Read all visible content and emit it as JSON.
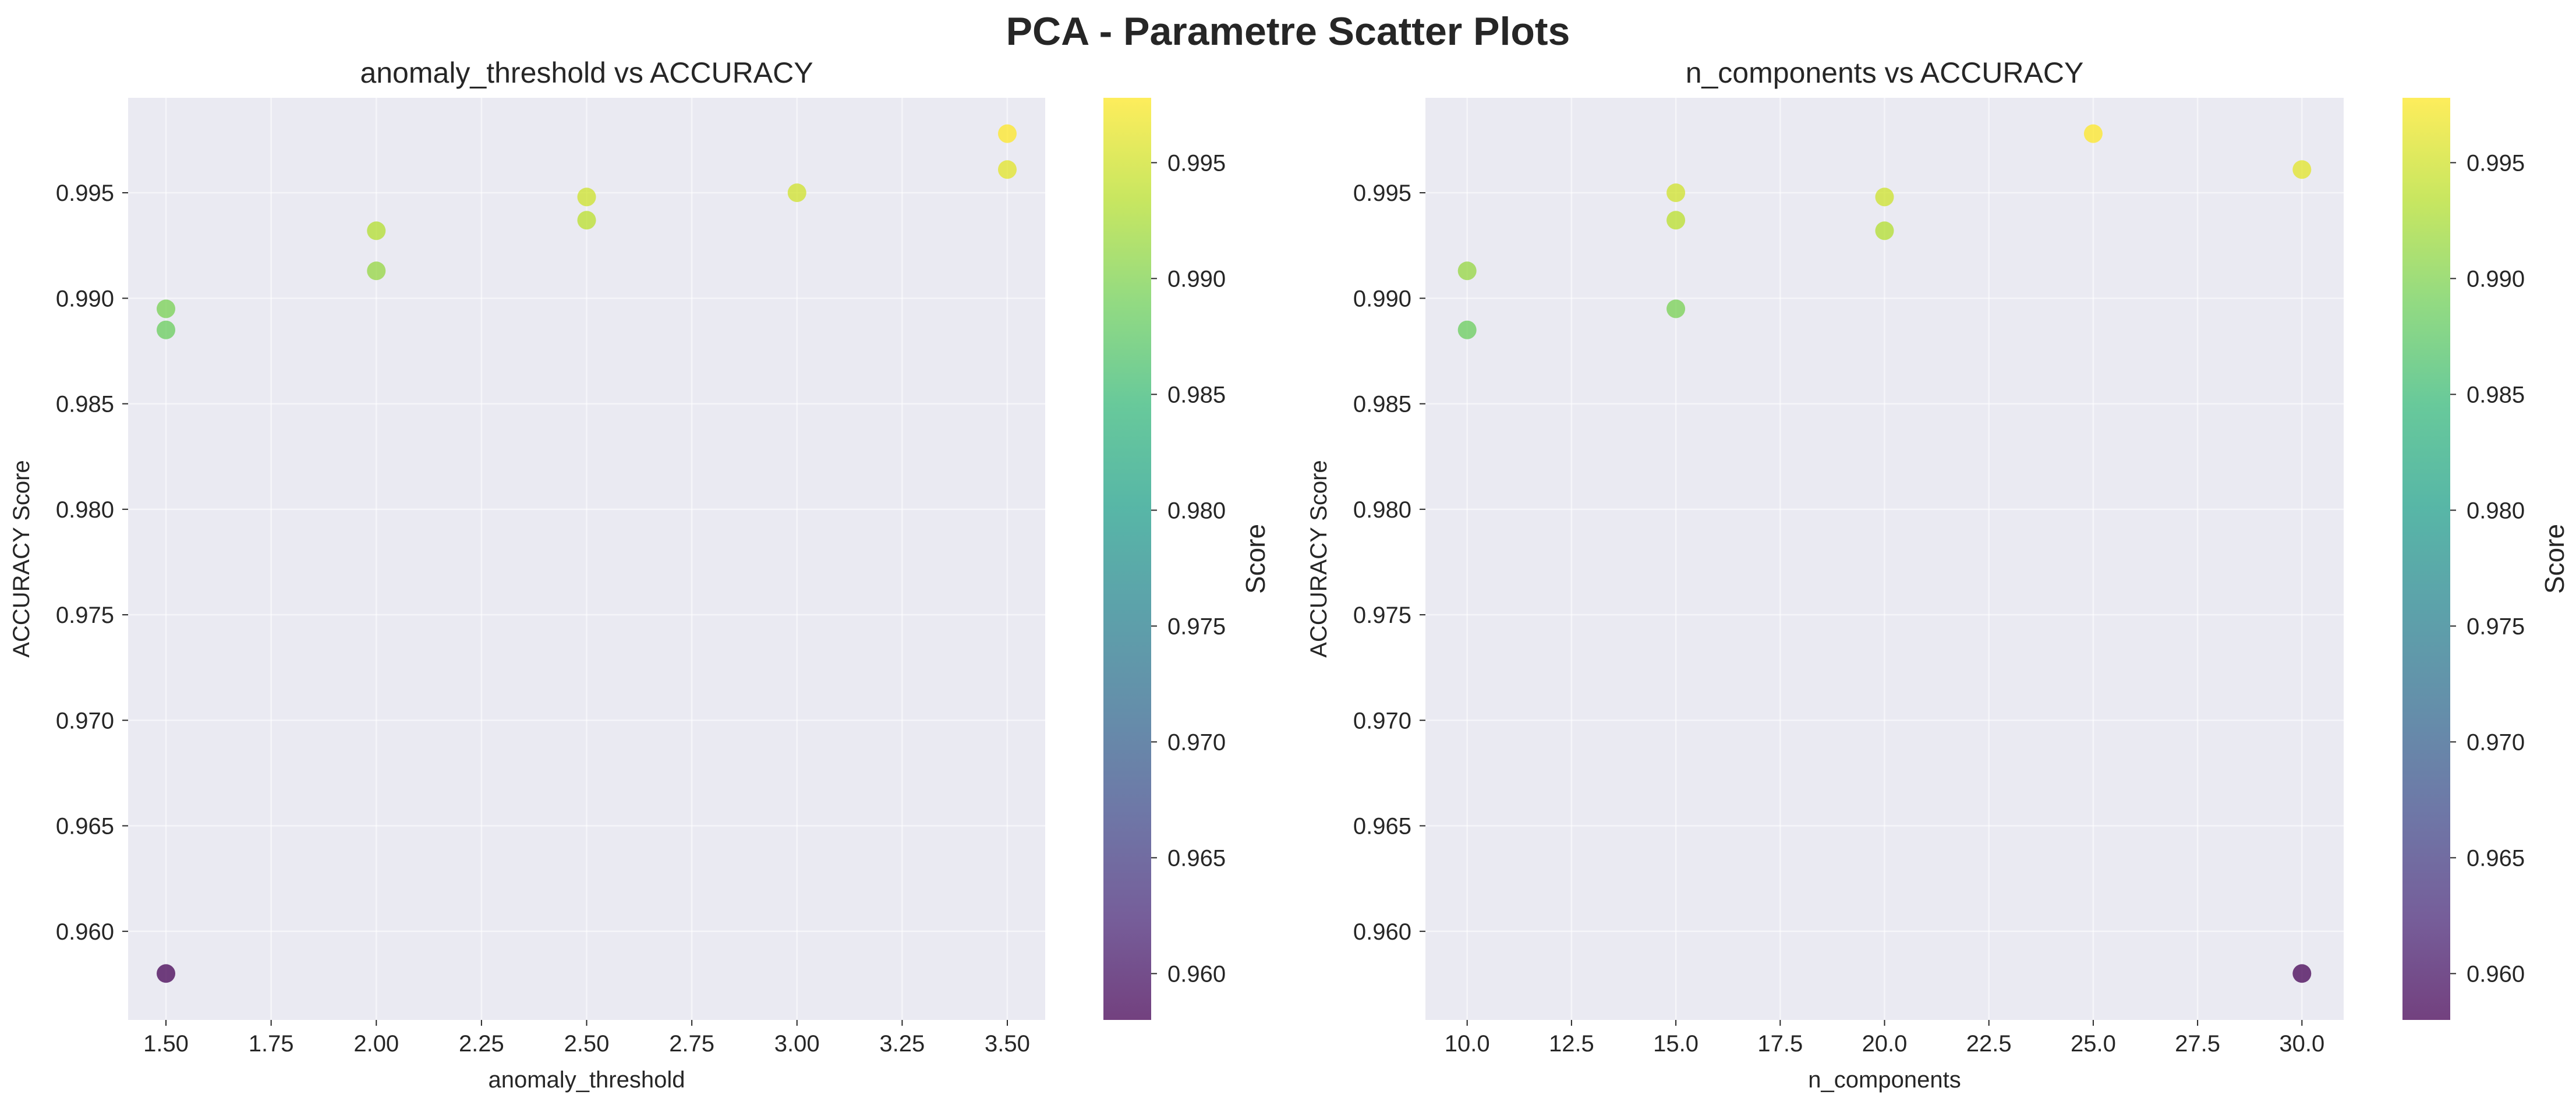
{
  "figure_title": "PCA - Parametre Scatter Plots",
  "colormap": [
    "#440154",
    "#482878",
    "#3e4989",
    "#31688e",
    "#26828e",
    "#1f9e89",
    "#35b779",
    "#6ece58",
    "#b5de2b",
    "#fde725"
  ],
  "point_alpha": 0.75,
  "chart_data": [
    {
      "type": "scatter",
      "title": "anomaly_threshold vs ACCURACY",
      "xlabel": "anomaly_threshold",
      "ylabel": "ACCURACY Score",
      "xlim": [
        1.41,
        3.59
      ],
      "ylim": [
        0.9558,
        0.9995
      ],
      "xticks": [
        1.5,
        1.75,
        2.0,
        2.25,
        2.5,
        2.75,
        3.0,
        3.25,
        3.5
      ],
      "xtick_labels": [
        "1.50",
        "1.75",
        "2.00",
        "2.25",
        "2.50",
        "2.75",
        "3.00",
        "3.25",
        "3.50"
      ],
      "yticks": [
        0.96,
        0.965,
        0.97,
        0.975,
        0.98,
        0.985,
        0.99,
        0.995
      ],
      "ytick_labels": [
        "0.960",
        "0.965",
        "0.970",
        "0.975",
        "0.980",
        "0.985",
        "0.990",
        "0.995"
      ],
      "grid": true,
      "points": [
        {
          "x": 1.5,
          "y": 0.958
        },
        {
          "x": 1.5,
          "y": 0.9885
        },
        {
          "x": 1.5,
          "y": 0.9895
        },
        {
          "x": 2.0,
          "y": 0.9913
        },
        {
          "x": 2.0,
          "y": 0.9932
        },
        {
          "x": 2.5,
          "y": 0.9937
        },
        {
          "x": 2.5,
          "y": 0.9948
        },
        {
          "x": 3.0,
          "y": 0.995
        },
        {
          "x": 3.5,
          "y": 0.9961
        },
        {
          "x": 3.5,
          "y": 0.9978
        }
      ],
      "colorbar": {
        "label": "Score",
        "range": [
          0.958,
          0.9978
        ],
        "ticks": [
          0.96,
          0.965,
          0.97,
          0.975,
          0.98,
          0.985,
          0.99,
          0.995
        ],
        "tick_labels": [
          "0.960",
          "0.965",
          "0.970",
          "0.975",
          "0.980",
          "0.985",
          "0.990",
          "0.995"
        ]
      }
    },
    {
      "type": "scatter",
      "title": "n_components vs ACCURACY",
      "xlabel": "n_components",
      "ylabel": "ACCURACY Score",
      "xlim": [
        9.0,
        31.0
      ],
      "ylim": [
        0.9558,
        0.9995
      ],
      "xticks": [
        10,
        12.5,
        15,
        17.5,
        20,
        22.5,
        25,
        27.5,
        30
      ],
      "xtick_labels": [
        "10.0",
        "12.5",
        "15.0",
        "17.5",
        "20.0",
        "22.5",
        "25.0",
        "27.5",
        "30.0"
      ],
      "yticks": [
        0.96,
        0.965,
        0.97,
        0.975,
        0.98,
        0.985,
        0.99,
        0.995
      ],
      "ytick_labels": [
        "0.960",
        "0.965",
        "0.970",
        "0.975",
        "0.980",
        "0.985",
        "0.990",
        "0.995"
      ],
      "grid": true,
      "points": [
        {
          "x": 10,
          "y": 0.9885
        },
        {
          "x": 10,
          "y": 0.9913
        },
        {
          "x": 15,
          "y": 0.9895
        },
        {
          "x": 15,
          "y": 0.9937
        },
        {
          "x": 15,
          "y": 0.995
        },
        {
          "x": 20,
          "y": 0.9932
        },
        {
          "x": 20,
          "y": 0.9948
        },
        {
          "x": 25,
          "y": 0.9978
        },
        {
          "x": 30,
          "y": 0.9961
        },
        {
          "x": 30,
          "y": 0.958
        }
      ],
      "colorbar": {
        "label": "Score",
        "range": [
          0.958,
          0.9978
        ],
        "ticks": [
          0.96,
          0.965,
          0.97,
          0.975,
          0.98,
          0.985,
          0.99,
          0.995
        ],
        "tick_labels": [
          "0.960",
          "0.965",
          "0.970",
          "0.975",
          "0.980",
          "0.985",
          "0.990",
          "0.995"
        ]
      }
    }
  ]
}
